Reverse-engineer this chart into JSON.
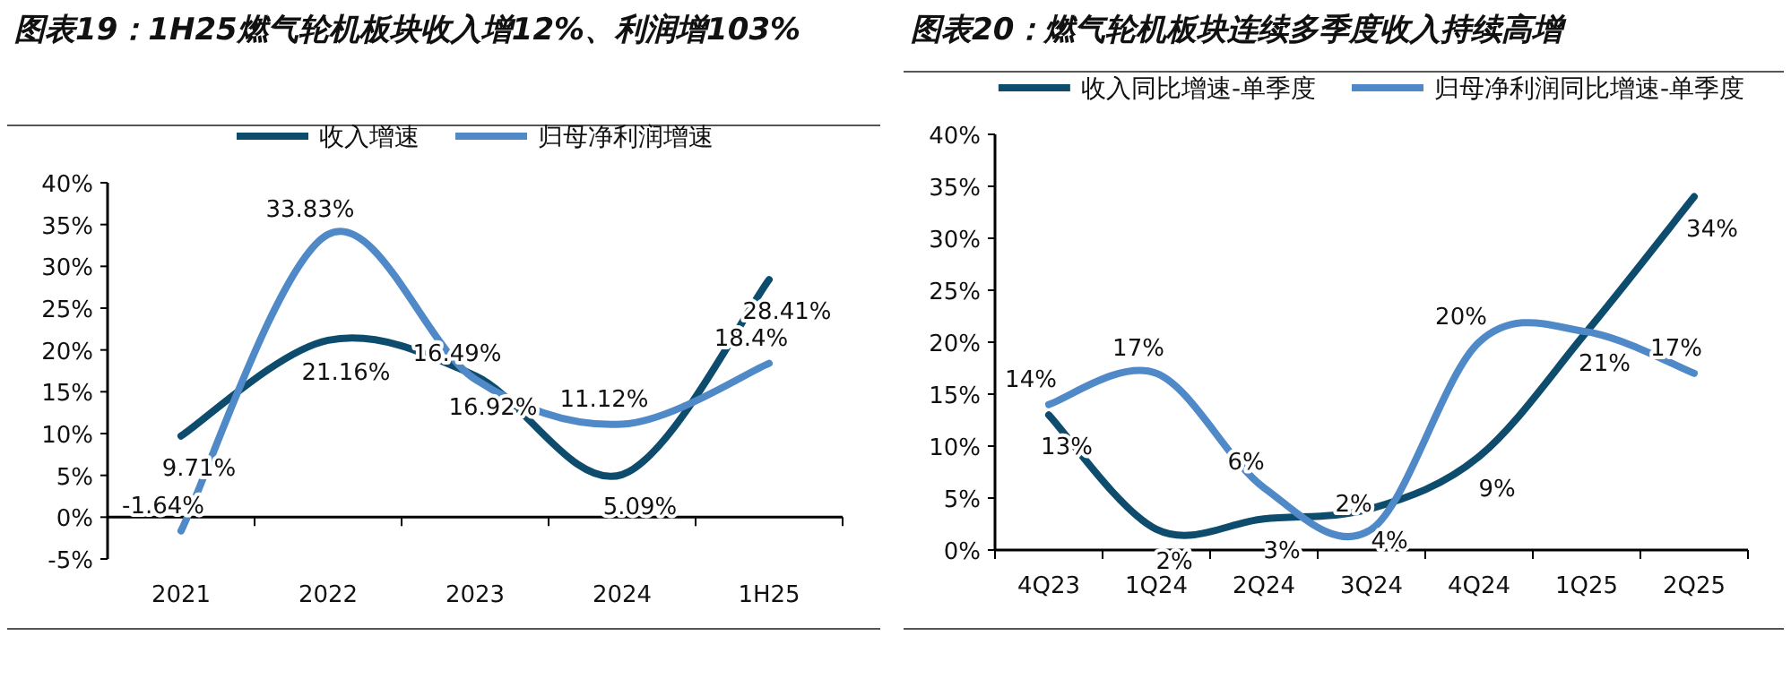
{
  "chart_data": [
    {
      "type": "line",
      "title": "图表19：1H25燃气轮机板块收入增12%、利润增103%",
      "categories": [
        "2021",
        "2022",
        "2023",
        "2024",
        "1H25"
      ],
      "series": [
        {
          "name": "收入增速",
          "color": "#0e4c6e",
          "values": [
            9.71,
            21.16,
            16.92,
            5.09,
            28.41
          ],
          "value_labels": [
            "9.71%",
            "21.16%",
            "16.92%",
            "5.09%",
            "28.41%"
          ]
        },
        {
          "name": "归母净利润增速",
          "color": "#4f89c8",
          "values": [
            -1.64,
            33.83,
            16.49,
            11.12,
            18.4
          ],
          "value_labels": [
            "-1.64%",
            "33.83%",
            "16.49%",
            "11.12%",
            "18.4%"
          ]
        }
      ],
      "ylim": [
        -5,
        40
      ],
      "yticks": [
        {
          "value": -5,
          "label": "-5%"
        },
        {
          "value": 0,
          "label": "0%"
        },
        {
          "value": 5,
          "label": "5%"
        },
        {
          "value": 10,
          "label": "10%"
        },
        {
          "value": 15,
          "label": "15%"
        },
        {
          "value": 20,
          "label": "20%"
        },
        {
          "value": 25,
          "label": "25%"
        },
        {
          "value": 30,
          "label": "30%"
        },
        {
          "value": 35,
          "label": "35%"
        },
        {
          "value": 40,
          "label": "40%"
        }
      ],
      "legend": "top"
    },
    {
      "type": "line",
      "title": "图表20：燃气轮机板块连续多季度收入持续高增",
      "categories": [
        "4Q23",
        "1Q24",
        "2Q24",
        "3Q24",
        "4Q24",
        "1Q25",
        "2Q25"
      ],
      "series": [
        {
          "name": "收入同比增速-单季度",
          "color": "#0e4c6e",
          "values": [
            13,
            2,
            3,
            4,
            9,
            21,
            34
          ],
          "value_labels": [
            "13%",
            "2%",
            "3%",
            "4%",
            "9%",
            "21%",
            "34%"
          ]
        },
        {
          "name": "归母净利润同比增速-单季度",
          "color": "#4f89c8",
          "values": [
            14,
            17,
            6,
            2,
            20,
            21,
            17
          ],
          "value_labels": [
            "14%",
            "17%",
            "6%",
            "2%",
            "20%",
            null,
            "17%"
          ]
        }
      ],
      "ylim": [
        0,
        40
      ],
      "yticks": [
        {
          "value": 0,
          "label": "0%"
        },
        {
          "value": 5,
          "label": "5%"
        },
        {
          "value": 10,
          "label": "10%"
        },
        {
          "value": 15,
          "label": "15%"
        },
        {
          "value": 20,
          "label": "20%"
        },
        {
          "value": 25,
          "label": "25%"
        },
        {
          "value": 30,
          "label": "30%"
        },
        {
          "value": 35,
          "label": "35%"
        },
        {
          "value": 40,
          "label": "40%"
        }
      ],
      "legend": "top"
    }
  ]
}
